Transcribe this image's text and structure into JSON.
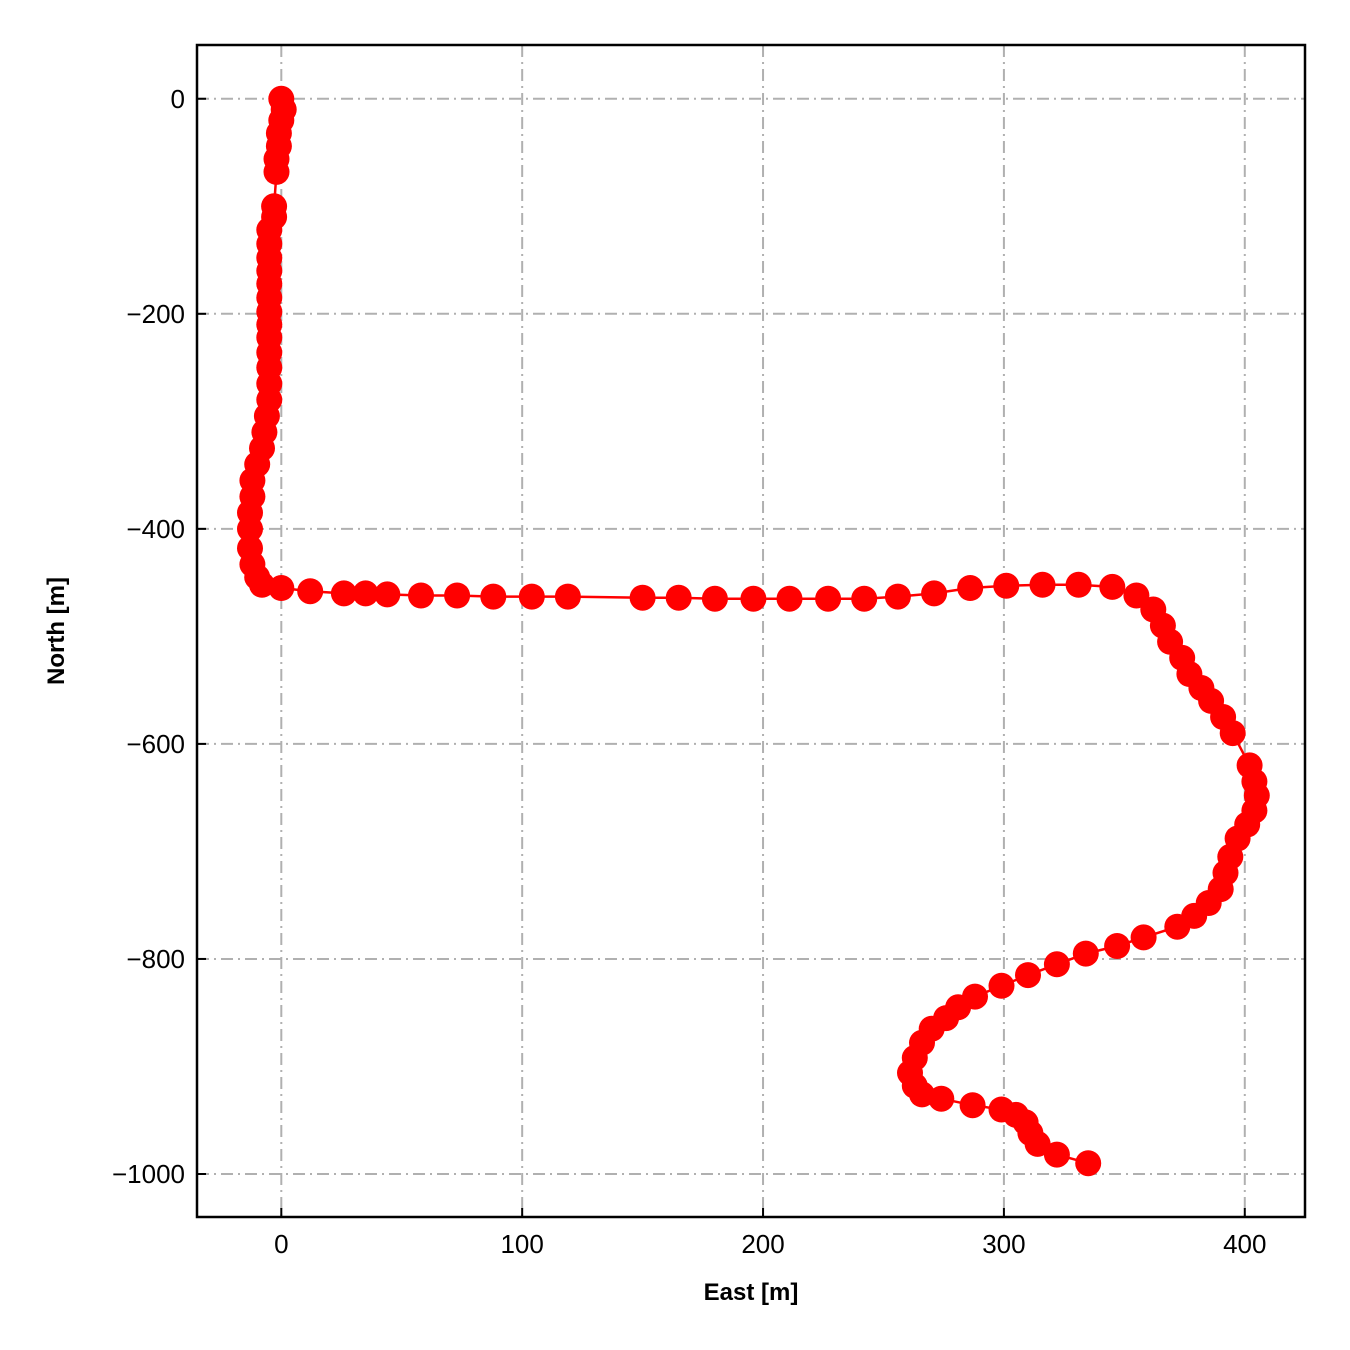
{
  "chart_data": {
    "type": "line",
    "xlabel": "East [m]",
    "ylabel": "North [m]",
    "xlim": [
      -35,
      425
    ],
    "ylim": [
      -1040,
      50
    ],
    "xticks": [
      0,
      100,
      200,
      300,
      400
    ],
    "yticks": [
      0,
      -200,
      -400,
      -600,
      -800,
      -1000
    ],
    "xtick_labels": [
      "0",
      "100",
      "200",
      "300",
      "400"
    ],
    "ytick_labels": [
      "0",
      "−200",
      "−400",
      "−600",
      "−800",
      "−1000"
    ],
    "grid": true,
    "grid_style": "dash-dot",
    "line_color": "#ff0000",
    "marker": "circle",
    "series": [
      {
        "x": [
          0,
          1,
          0,
          -1,
          -1,
          -2,
          -2,
          -3,
          -3,
          -5,
          -5,
          -5,
          -5,
          -5,
          -5,
          -5,
          -5,
          -5,
          -5,
          -5,
          -5,
          -5,
          -6,
          -7,
          -8,
          -10,
          -12,
          -12,
          -13,
          -13,
          -13,
          -12,
          -10,
          -8,
          0,
          12,
          26,
          35,
          44,
          58,
          73,
          88,
          104,
          119,
          150,
          165,
          180,
          196,
          211,
          227,
          242,
          256,
          271,
          286,
          301,
          316,
          331,
          345,
          355,
          362,
          366,
          369,
          374,
          377,
          382,
          386,
          391,
          395,
          402,
          404,
          405,
          404,
          401,
          397,
          394,
          392,
          390,
          385,
          379,
          372,
          358,
          347,
          334,
          322,
          310,
          299,
          288,
          281,
          276,
          270,
          266,
          263,
          261,
          263,
          266,
          274,
          287,
          299,
          305,
          309,
          311,
          314,
          322,
          335
        ],
        "y": [
          0,
          -10,
          -20,
          -32,
          -44,
          -56,
          -68,
          -100,
          -110,
          -122,
          -135,
          -148,
          -160,
          -172,
          -185,
          -198,
          -210,
          -222,
          -236,
          -250,
          -265,
          -280,
          -295,
          -310,
          -325,
          -340,
          -355,
          -370,
          -385,
          -400,
          -418,
          -433,
          -445,
          -452,
          -455,
          -458,
          -460,
          -460,
          -461,
          -462,
          -462,
          -463,
          -463,
          -463,
          -464,
          -464,
          -465,
          -465,
          -465,
          -465,
          -465,
          -463,
          -460,
          -455,
          -453,
          -452,
          -452,
          -454,
          -462,
          -475,
          -490,
          -505,
          -520,
          -535,
          -548,
          -560,
          -575,
          -590,
          -620,
          -635,
          -648,
          -662,
          -675,
          -688,
          -705,
          -720,
          -735,
          -748,
          -760,
          -770,
          -780,
          -788,
          -795,
          -805,
          -815,
          -825,
          -835,
          -845,
          -855,
          -865,
          -878,
          -892,
          -906,
          -918,
          -926,
          -930,
          -936,
          -940,
          -945,
          -952,
          -962,
          -972,
          -982,
          -990
        ]
      }
    ]
  }
}
